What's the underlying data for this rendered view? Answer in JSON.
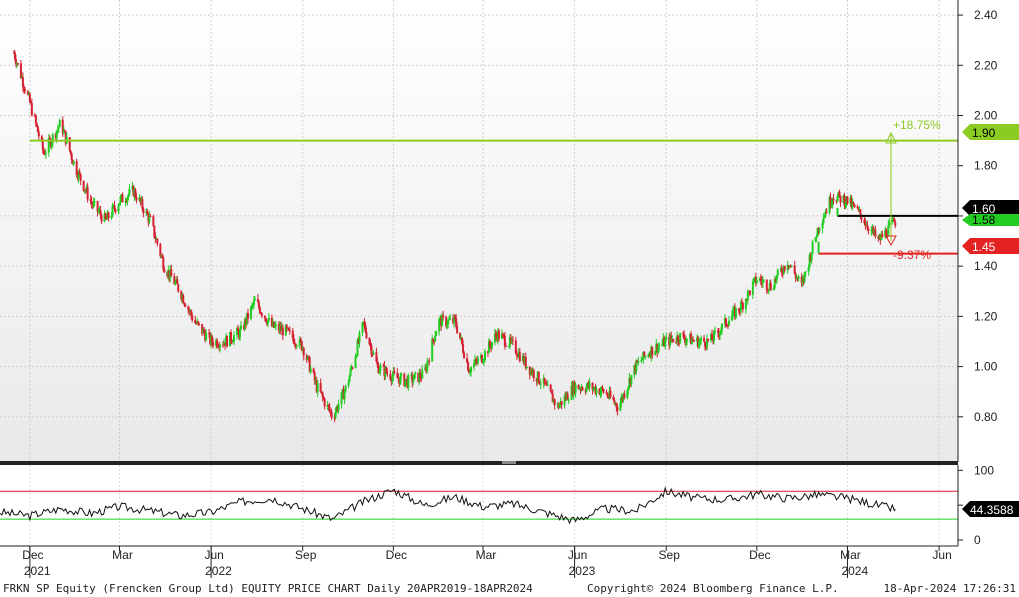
{
  "chart_data": [
    {
      "type": "candlestick",
      "title": "FRKN SP Equity (Frencken Group Ltd) EQUITY PRICE CHART",
      "ylim": [
        0.62,
        2.46
      ],
      "y_ticks": [
        2.4,
        2.2,
        2.0,
        1.8,
        1.6,
        1.4,
        1.2,
        1.0,
        0.8
      ],
      "grid": true,
      "up_color": "#22cc22",
      "down_color": "#d42030",
      "series": [
        {
          "x": [
            "2021-11-15",
            "2021-12-01",
            "2021-12-15",
            "2022-01-01",
            "2022-01-15",
            "2022-02-01",
            "2022-02-15",
            "2022-03-01",
            "2022-03-15",
            "2022-04-01",
            "2022-04-15",
            "2022-05-01",
            "2022-05-15",
            "2022-06-01",
            "2022-06-15",
            "2022-07-01",
            "2022-07-15",
            "2022-08-01",
            "2022-08-15",
            "2022-09-01",
            "2022-09-15",
            "2022-10-01",
            "2022-10-15",
            "2022-11-01",
            "2022-11-15",
            "2022-12-01",
            "2022-12-15",
            "2023-01-01",
            "2023-01-15",
            "2023-02-01",
            "2023-02-15",
            "2023-03-01",
            "2023-03-15",
            "2023-04-01",
            "2023-04-15",
            "2023-05-01",
            "2023-05-15",
            "2023-06-01",
            "2023-06-15",
            "2023-07-01",
            "2023-07-15",
            "2023-08-01",
            "2023-08-15",
            "2023-09-01",
            "2023-09-15",
            "2023-10-01",
            "2023-10-15",
            "2023-11-01",
            "2023-11-15",
            "2023-12-01",
            "2023-12-15",
            "2024-01-01",
            "2024-01-15",
            "2024-02-01",
            "2024-02-15",
            "2024-03-01",
            "2024-03-15",
            "2024-04-01",
            "2024-04-18"
          ],
          "close": [
            2.25,
            2.05,
            1.85,
            1.97,
            1.8,
            1.65,
            1.58,
            1.66,
            1.7,
            1.58,
            1.4,
            1.3,
            1.18,
            1.1,
            1.1,
            1.14,
            1.26,
            1.16,
            1.14,
            1.08,
            0.92,
            0.8,
            0.92,
            1.17,
            1.0,
            0.96,
            0.94,
            0.97,
            1.18,
            1.18,
            0.99,
            1.04,
            1.13,
            1.08,
            1.0,
            0.93,
            0.84,
            0.92,
            0.92,
            0.9,
            0.84,
            1.0,
            1.06,
            1.1,
            1.12,
            1.1,
            1.1,
            1.18,
            1.24,
            1.35,
            1.32,
            1.42,
            1.32,
            1.56,
            1.68,
            1.66,
            1.6,
            1.5,
            1.58
          ]
        }
      ]
    },
    {
      "type": "line",
      "ylim": [
        0,
        100
      ],
      "y_ticks": [
        100,
        50,
        0
      ],
      "upper_band": 70,
      "lower_band": 30,
      "series": [
        {
          "name": "RSI",
          "x": [
            "2021-11-01",
            "2021-12-01",
            "2022-01-01",
            "2022-02-01",
            "2022-03-01",
            "2022-04-01",
            "2022-05-01",
            "2022-06-01",
            "2022-07-01",
            "2022-08-01",
            "2022-09-01",
            "2022-10-01",
            "2022-11-01",
            "2022-12-01",
            "2023-01-01",
            "2023-02-01",
            "2023-03-01",
            "2023-04-01",
            "2023-05-01",
            "2023-06-01",
            "2023-07-01",
            "2023-08-01",
            "2023-09-01",
            "2023-10-01",
            "2023-11-01",
            "2023-12-01",
            "2024-01-01",
            "2024-02-01",
            "2024-03-01",
            "2024-04-18"
          ],
          "values": [
            40,
            35,
            45,
            38,
            48,
            42,
            35,
            40,
            55,
            60,
            45,
            30,
            55,
            72,
            50,
            62,
            48,
            52,
            40,
            28,
            45,
            42,
            70,
            60,
            58,
            66,
            60,
            65,
            60,
            44.3588
          ]
        }
      ],
      "last_value_label": "44.3588"
    }
  ],
  "x_axis": {
    "months": [
      {
        "label": "Dec",
        "year": "2021",
        "date": "2021-12-01"
      },
      {
        "label": "Mar",
        "year": "",
        "date": "2022-03-01"
      },
      {
        "label": "Jun",
        "year": "2022",
        "date": "2022-06-01"
      },
      {
        "label": "Sep",
        "year": "",
        "date": "2022-09-01"
      },
      {
        "label": "Dec",
        "year": "",
        "date": "2022-12-01"
      },
      {
        "label": "Mar",
        "year": "",
        "date": "2023-03-01"
      },
      {
        "label": "Jun",
        "year": "2023",
        "date": "2023-06-01"
      },
      {
        "label": "Sep",
        "year": "",
        "date": "2023-09-01"
      },
      {
        "label": "Dec",
        "year": "",
        "date": "2023-12-01"
      },
      {
        "label": "Mar",
        "year": "2024",
        "date": "2024-03-01"
      },
      {
        "label": "Jun",
        "year": "",
        "date": "2024-06-01"
      }
    ]
  },
  "levels": {
    "resistance": {
      "value": 1.9,
      "label": "1.90",
      "color": "#8ccc22",
      "start": "2021-12-01"
    },
    "pivot": {
      "value": 1.6,
      "label": "1.60",
      "color": "#000000",
      "start": "2024-02-20"
    },
    "last": {
      "value": 1.58,
      "label": "1.58",
      "color": "#22cc22"
    },
    "support": {
      "value": 1.45,
      "label": "1.45",
      "color": "#e52222",
      "start": "2024-02-01"
    }
  },
  "annotations": {
    "up_pct": "+18.75%",
    "down_pct": "-9.37%"
  },
  "footer": {
    "left": "FRKN SP Equity (Frencken Group Ltd) EQUITY PRICE CHART  Daily 20APR2019-18APR2024",
    "center": "Copyright© 2024 Bloomberg Finance L.P.",
    "right": "18-Apr-2024 17:26:31"
  }
}
